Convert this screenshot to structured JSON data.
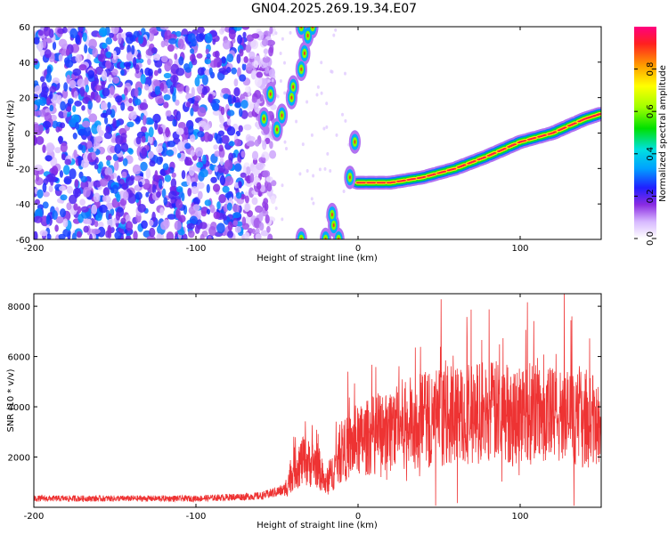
{
  "title": "GN04.2025.269.19.34.E07",
  "chart_data": [
    {
      "type": "heatmap",
      "xlabel": "Height of straight line (km)",
      "ylabel": "Frequency (Hz)",
      "xlim": [
        -200,
        150
      ],
      "ylim": [
        -60,
        60
      ],
      "x_ticks": [
        -200,
        -100,
        0,
        100
      ],
      "y_ticks": [
        -60,
        -40,
        -20,
        0,
        20,
        40,
        60
      ],
      "colorbar": {
        "label": "Normalized spectral amplitude",
        "range": [
          0,
          1
        ],
        "ticks": [
          0,
          0.2,
          0.4,
          0.6,
          0.8
        ],
        "colormap": "rainbow"
      },
      "features": {
        "noise_region_x": [
          -200,
          -60
        ],
        "main_track": [
          [
            0,
            -28
          ],
          [
            20,
            -28
          ],
          [
            40,
            -25
          ],
          [
            60,
            -20
          ],
          [
            80,
            -13
          ],
          [
            100,
            -5
          ],
          [
            120,
            0
          ],
          [
            140,
            8
          ],
          [
            150,
            11
          ]
        ],
        "branch_track": [
          [
            -58,
            8
          ],
          [
            -55,
            22
          ],
          [
            -50,
            0
          ],
          [
            -45,
            5
          ],
          [
            -40,
            22
          ],
          [
            -35,
            35
          ],
          [
            -30,
            45
          ],
          [
            -25,
            55
          ]
        ]
      }
    },
    {
      "type": "line",
      "xlabel": "Height of straight line (km)",
      "ylabel": "SNR (10 * v/v)",
      "xlim": [
        -200,
        150
      ],
      "ylim": [
        0,
        8500
      ],
      "x_ticks": [
        -200,
        -100,
        0,
        100
      ],
      "y_ticks": [
        2000,
        4000,
        6000,
        8000
      ],
      "color": "#ee3333",
      "envelope": [
        [
          -200,
          350
        ],
        [
          -100,
          350
        ],
        [
          -60,
          450
        ],
        [
          -45,
          700
        ],
        [
          -40,
          1500
        ],
        [
          -35,
          1800
        ],
        [
          -25,
          1700
        ],
        [
          -20,
          900
        ],
        [
          -15,
          1500
        ],
        [
          -10,
          2200
        ],
        [
          0,
          2600
        ],
        [
          20,
          3200
        ],
        [
          50,
          3600
        ],
        [
          80,
          3800
        ],
        [
          110,
          3700
        ],
        [
          140,
          3500
        ],
        [
          150,
          3300
        ]
      ]
    }
  ]
}
